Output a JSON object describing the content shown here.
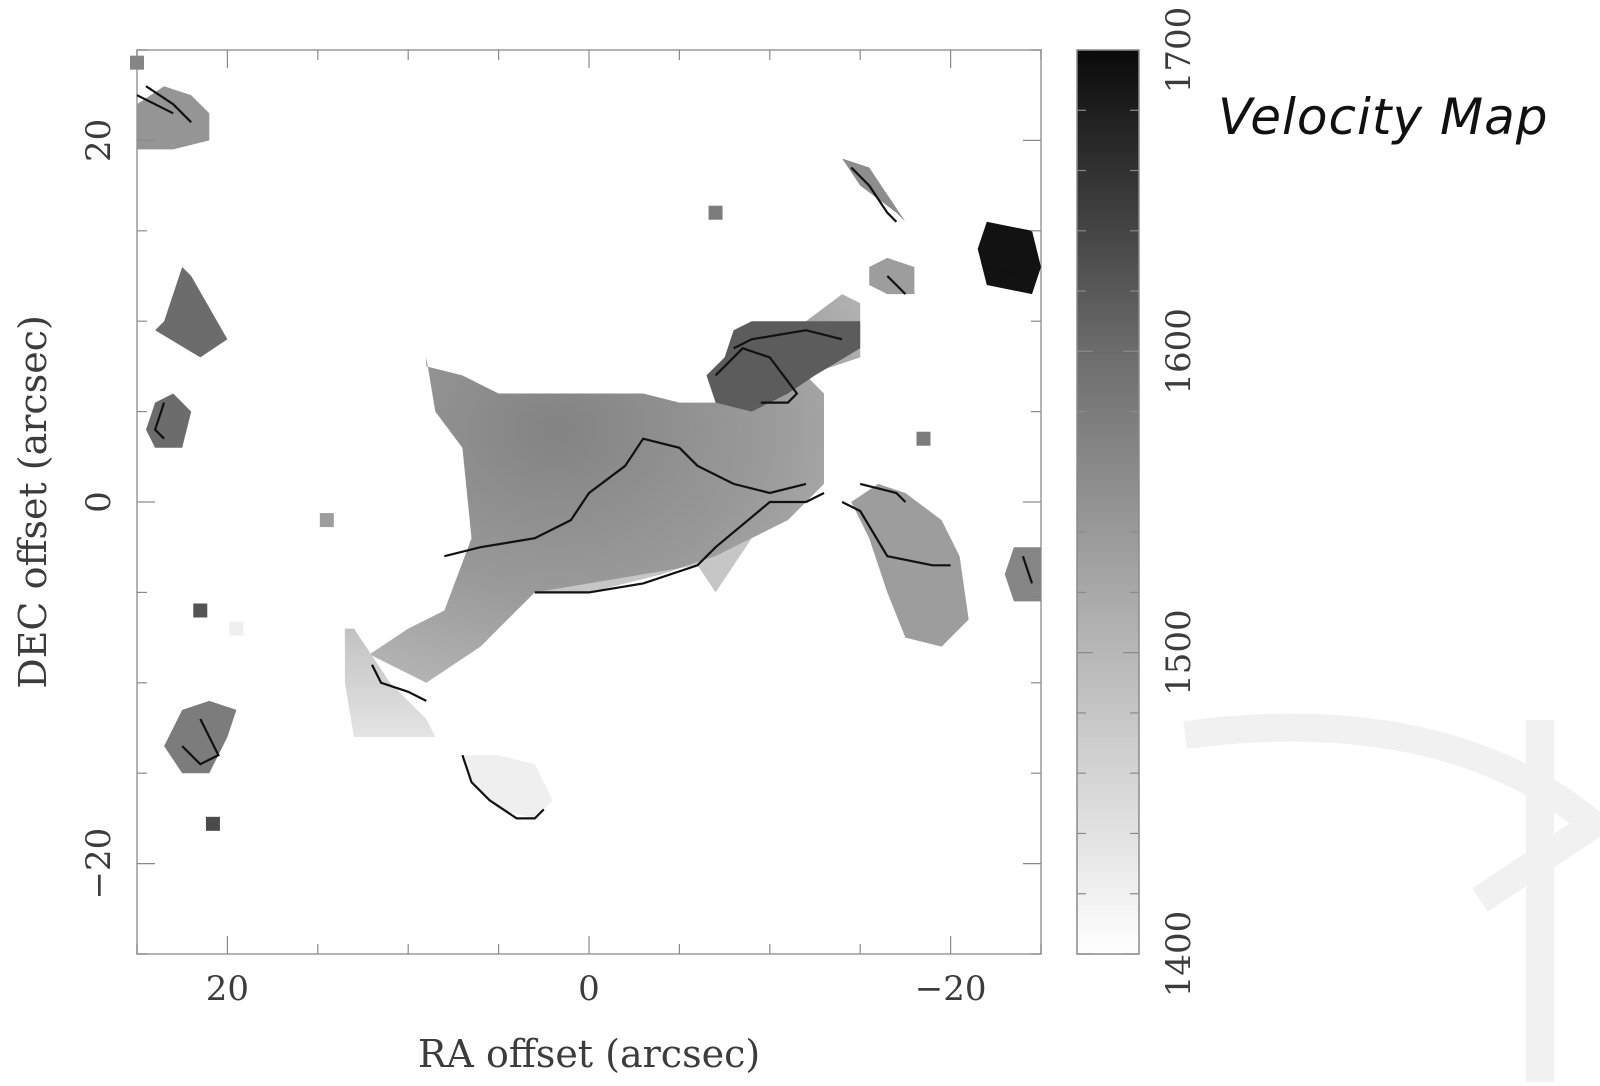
{
  "title": "Velocity Map",
  "chart_data": {
    "type": "heatmap",
    "description_of_encoding": "",
    "xlabel": "RA offset (arcsec)",
    "ylabel": "DEC offset (arcsec)",
    "xlim": [
      25,
      -25
    ],
    "ylim": [
      -25,
      25
    ],
    "xticks": [
      20,
      0,
      -20
    ],
    "xtick_labels": [
      "20",
      "0",
      "−20"
    ],
    "yticks": [
      20,
      0,
      -20
    ],
    "ytick_labels": [
      "20",
      "0",
      "−20"
    ],
    "colorbar": {
      "min": 1400,
      "max": 1700,
      "ticks": [
        1400,
        1500,
        1600,
        1700
      ],
      "tick_labels": [
        "1400",
        "1500",
        "1600",
        "1700"
      ],
      "colormap": "white-to-black",
      "low_color": "#ffffff",
      "high_color": "#0a0a0a"
    },
    "regions": [
      {
        "name": "main-region",
        "center": [
          1,
          3
        ],
        "velocity": 1560
      },
      {
        "name": "ne-upper-blob",
        "center": [
          10,
          11
        ],
        "velocity": 1600
      },
      {
        "name": "central-lower-region",
        "center": [
          -2,
          -3
        ],
        "velocity": 1470
      },
      {
        "name": "sw-tail-region",
        "center": [
          10.5,
          -8
        ],
        "velocity": 1450
      },
      {
        "name": "right-mid-blob",
        "center": [
          -19,
          -3.5
        ],
        "velocity": 1520
      },
      {
        "name": "top-left-blob",
        "center": [
          22.5,
          21
        ],
        "velocity": 1530
      },
      {
        "name": "left-upper-blob",
        "center": [
          22.5,
          11
        ],
        "velocity": 1580
      },
      {
        "name": "left-mid-blob",
        "center": [
          23.5,
          4.5
        ],
        "velocity": 1580
      },
      {
        "name": "left-lower-blob",
        "center": [
          21,
          -13
        ],
        "velocity": 1560
      },
      {
        "name": "bottom-blob",
        "center": [
          4.5,
          -16
        ],
        "velocity": 1420
      },
      {
        "name": "upper-right-blob-1",
        "center": [
          -15.5,
          17.5
        ],
        "velocity": 1540
      },
      {
        "name": "upper-right-blob-2",
        "center": [
          -17,
          12.5
        ],
        "velocity": 1520
      },
      {
        "name": "far-right-top-blob",
        "center": [
          -23,
          13.5
        ],
        "velocity": 1690
      },
      {
        "name": "far-right-mid-blob",
        "center": [
          -24,
          -4
        ],
        "velocity": 1550
      }
    ],
    "grid": false
  }
}
